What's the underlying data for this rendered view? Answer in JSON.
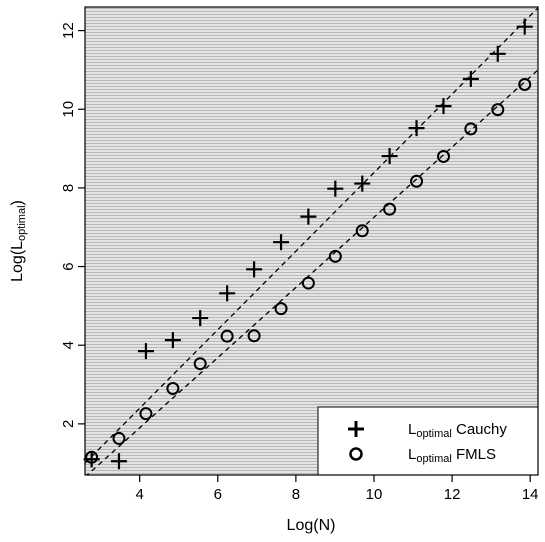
{
  "chart_data": {
    "type": "scatter",
    "xlabel": "Log(N)",
    "ylabel": {
      "main": "Log(L",
      "sub": "optimal",
      "close": ")"
    },
    "xlim": [
      2.6,
      14.2
    ],
    "ylim": [
      0.7,
      12.6
    ],
    "xticks": [
      4,
      6,
      8,
      10,
      12,
      14
    ],
    "yticks": [
      2,
      4,
      6,
      8,
      10,
      12
    ],
    "background": "#e4e4e4",
    "hatch_color": "#b8b8b8",
    "legend_position": "bottom-right",
    "series": [
      {
        "name": "Cauchy",
        "label_prefix": "L",
        "label_sub": "optimal",
        "label_suffix": " Cauchy",
        "marker": "plus",
        "points": [
          [
            2.77,
            1.1
          ],
          [
            3.47,
            1.05
          ],
          [
            4.16,
            3.85
          ],
          [
            4.85,
            4.13
          ],
          [
            5.55,
            4.69
          ],
          [
            6.24,
            5.32
          ],
          [
            6.93,
            5.93
          ],
          [
            7.62,
            6.62
          ],
          [
            8.32,
            7.27
          ],
          [
            9.01,
            7.98
          ],
          [
            9.7,
            8.11
          ],
          [
            10.4,
            8.81
          ],
          [
            11.09,
            9.52
          ],
          [
            11.78,
            10.08
          ],
          [
            12.48,
            10.77
          ],
          [
            13.17,
            11.41
          ],
          [
            13.86,
            12.1
          ]
        ],
        "fit_line": [
          [
            2.6,
            1.0
          ],
          [
            14.2,
            12.58
          ]
        ]
      },
      {
        "name": "FMLS",
        "label_prefix": "L",
        "label_sub": "optimal",
        "label_suffix": " FMLS",
        "marker": "circle",
        "points": [
          [
            2.77,
            1.15
          ],
          [
            3.47,
            1.63
          ],
          [
            4.16,
            2.26
          ],
          [
            4.85,
            2.9
          ],
          [
            5.55,
            3.53
          ],
          [
            6.24,
            4.23
          ],
          [
            6.93,
            4.24
          ],
          [
            7.62,
            4.93
          ],
          [
            8.32,
            5.58
          ],
          [
            9.01,
            6.26
          ],
          [
            9.7,
            6.91
          ],
          [
            10.4,
            7.46
          ],
          [
            11.09,
            8.17
          ],
          [
            11.78,
            8.8
          ],
          [
            12.48,
            9.5
          ],
          [
            13.17,
            9.99
          ],
          [
            13.86,
            10.63
          ]
        ],
        "fit_line": [
          [
            2.6,
            0.65
          ],
          [
            14.2,
            11.0
          ]
        ]
      }
    ]
  }
}
